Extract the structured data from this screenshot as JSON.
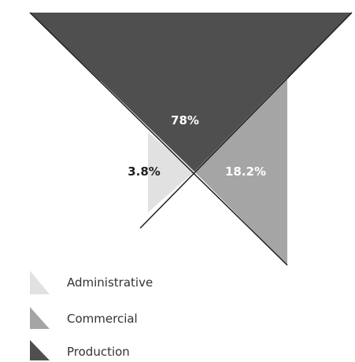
{
  "chart_data": {
    "type": "area",
    "title": "",
    "categories": [
      "Administrative",
      "Commercial",
      "Production"
    ],
    "values": [
      3.8,
      18.2,
      78
    ],
    "data_labels": [
      "3.8%",
      "18.2%",
      "78%"
    ],
    "colors": [
      "#e1e1e1",
      "#a5a5a5",
      "#4f4f4f"
    ],
    "label_colors": [
      "#1f1f1f",
      "#ffffff",
      "#ffffff"
    ],
    "legend": {
      "placement": "bottom-left",
      "entries": [
        "Administrative",
        "Commercial",
        "Production"
      ]
    },
    "grid": false
  }
}
